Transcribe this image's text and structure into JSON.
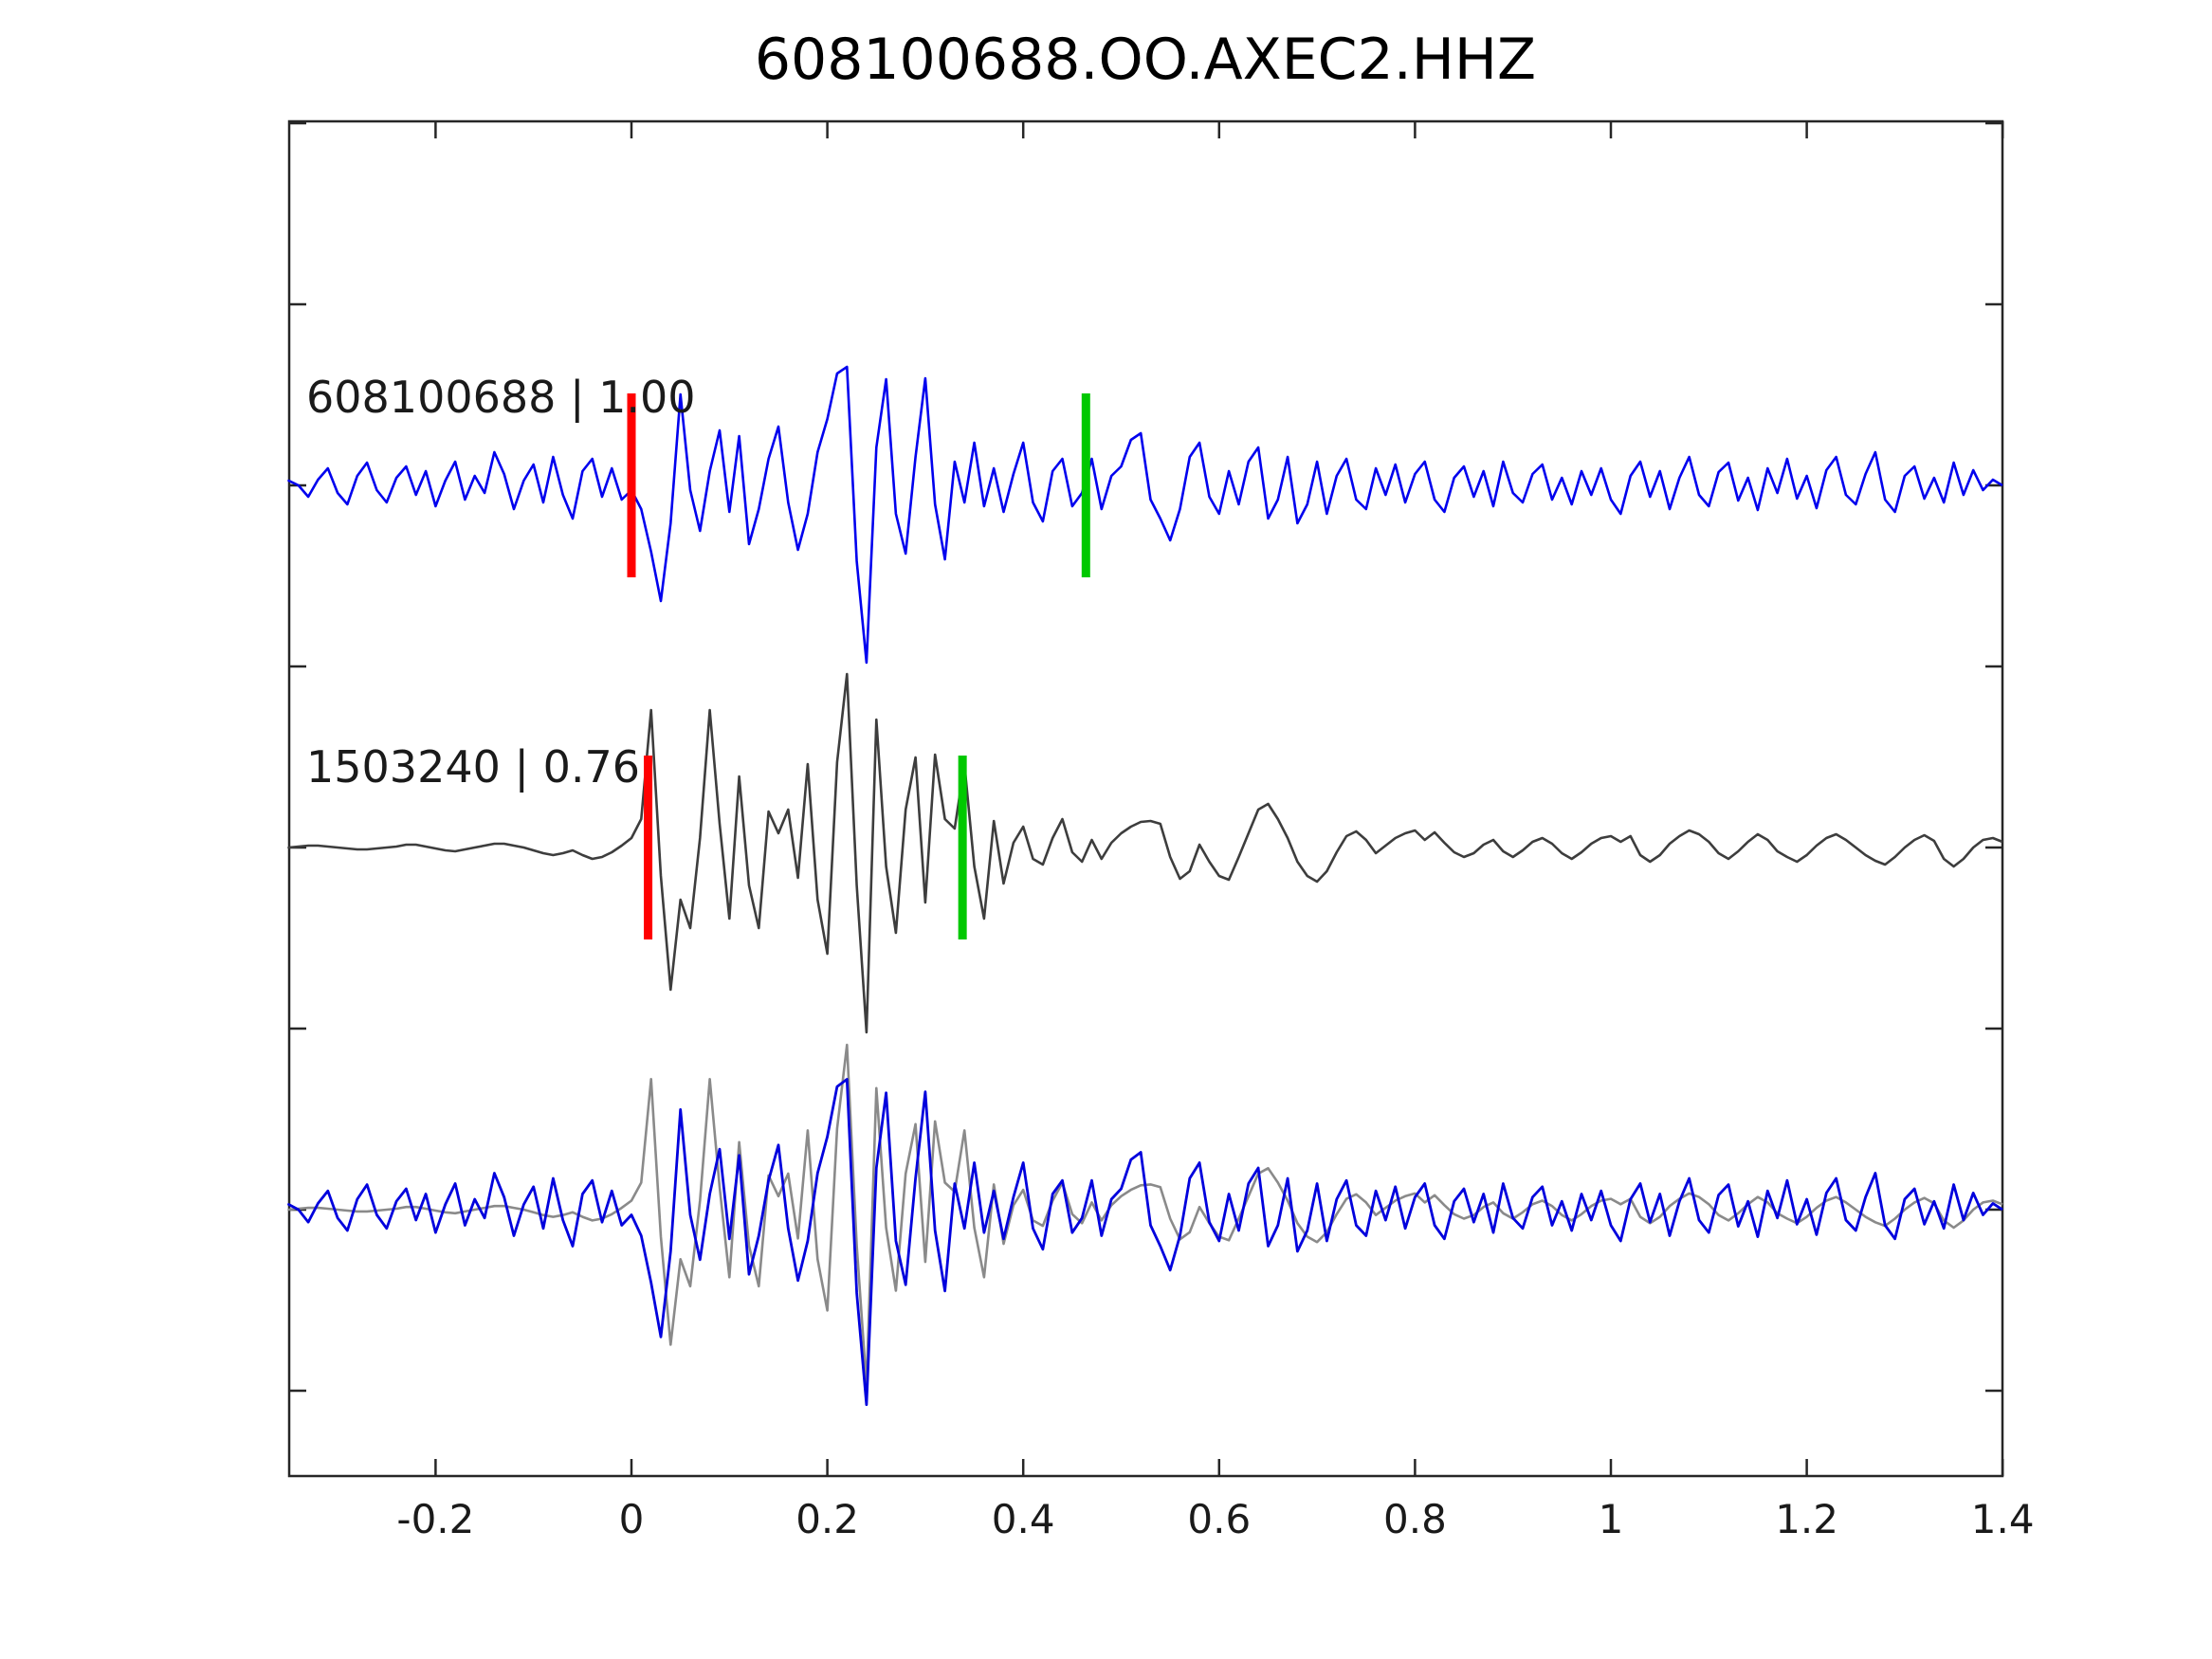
{
  "title": "608100688.OO.AXEC2.HHZ",
  "colors": {
    "background": "#ffffff",
    "axis": "#262626",
    "text": "#1a1a1a",
    "trace_blue": "#0000ee",
    "trace_dark_gray": "#3d3d3d",
    "overlay_gray": "#8a8a8a",
    "overlay_blue": "#0000dd",
    "marker_red": "#ff0000",
    "marker_green": "#00c800"
  },
  "chart_data": {
    "type": "line",
    "title": "608100688.OO.AXEC2.HHZ",
    "xlabel": "",
    "ylabel": "",
    "xlim": [
      -0.35,
      1.4
    ],
    "x_ticks": [
      -0.2,
      0,
      0.2,
      0.4,
      0.6,
      0.8,
      1,
      1.2,
      1.4
    ],
    "x_tick_labels": [
      "-0.2",
      "0",
      "0.2",
      "0.4",
      "0.6",
      "0.8",
      "1",
      "1.2",
      "1.4"
    ],
    "y_tick_labels": [],
    "grid": false,
    "legend_position": "none",
    "t0": -0.35,
    "dt": 0.01,
    "series": [
      {
        "name": "608100688",
        "label": "608100688 | 1.00",
        "event_id": "608100688",
        "correlation": "1.00",
        "row": 0,
        "values": [
          5,
          0,
          -12,
          6,
          18,
          -8,
          -20,
          10,
          24,
          -5,
          -18,
          8,
          20,
          -10,
          15,
          -22,
          5,
          25,
          -15,
          10,
          -8,
          35,
          12,
          -25,
          5,
          22,
          -18,
          30,
          -10,
          -35,
          15,
          28,
          -12,
          18,
          -15,
          -5,
          -25,
          -70,
          -122,
          -40,
          96,
          -5,
          -48,
          15,
          58,
          -28,
          52,
          -62,
          -25,
          28,
          62,
          -18,
          -68,
          -30,
          35,
          70,
          118,
          125,
          -80,
          -187,
          40,
          112,
          -30,
          -72,
          30,
          113,
          -20,
          -78,
          25,
          -18,
          45,
          -22,
          18,
          -28,
          12,
          45,
          -18,
          -38,
          15,
          28,
          -22,
          -8,
          28,
          -25,
          10,
          20,
          48,
          55,
          -15,
          -35,
          -58,
          -25,
          30,
          45,
          -12,
          -30,
          15,
          -20,
          25,
          40,
          -35,
          -15,
          30,
          -40,
          -20,
          25,
          -30,
          10,
          28,
          -15,
          -25,
          18,
          -10,
          22,
          -18,
          12,
          25,
          -15,
          -28,
          8,
          20,
          -12,
          15,
          -22,
          25,
          -8,
          -18,
          12,
          22,
          -15,
          8,
          -20,
          15,
          -10,
          18,
          -15,
          -30,
          10,
          25,
          -12,
          15,
          -25,
          8,
          30,
          -10,
          -22,
          14,
          24,
          -16,
          8,
          -26,
          18,
          -8,
          28,
          -14,
          10,
          -24,
          16,
          30,
          -10,
          -20,
          12,
          35,
          -15,
          -28,
          10,
          20,
          -14,
          8,
          -18,
          24,
          -10,
          16,
          -5,
          6,
          0
        ]
      },
      {
        "name": "1503240",
        "label": "1503240 | 0.76",
        "event_id": "1503240",
        "correlation": "0.76",
        "row": 1,
        "values": [
          0,
          1,
          2,
          2,
          1,
          0,
          -1,
          -2,
          -2,
          -1,
          0,
          1,
          3,
          3,
          1,
          -1,
          -3,
          -4,
          -2,
          0,
          2,
          4,
          4,
          2,
          0,
          -3,
          -6,
          -8,
          -6,
          -3,
          -8,
          -12,
          -10,
          -5,
          2,
          10,
          30,
          145,
          -30,
          -150,
          -55,
          -85,
          10,
          145,
          25,
          -75,
          75,
          -40,
          -85,
          38,
          15,
          40,
          -32,
          88,
          -55,
          -112,
          90,
          183,
          -40,
          -195,
          135,
          -20,
          -90,
          40,
          95,
          -58,
          98,
          30,
          20,
          88,
          -20,
          -75,
          28,
          -38,
          5,
          22,
          -12,
          -18,
          10,
          30,
          -5,
          -15,
          8,
          -12,
          5,
          15,
          22,
          27,
          28,
          25,
          -10,
          -33,
          -25,
          3,
          -15,
          -30,
          -34,
          -10,
          15,
          40,
          46,
          30,
          10,
          -15,
          -30,
          -36,
          -25,
          -5,
          12,
          17,
          8,
          -6,
          2,
          10,
          15,
          18,
          8,
          16,
          5,
          -5,
          -10,
          -6,
          3,
          8,
          -4,
          -10,
          -3,
          6,
          10,
          4,
          -6,
          -12,
          -5,
          4,
          10,
          12,
          6,
          12,
          -8,
          -15,
          -8,
          4,
          12,
          18,
          14,
          6,
          -6,
          -12,
          -4,
          6,
          14,
          8,
          -4,
          -10,
          -15,
          -8,
          2,
          10,
          14,
          8,
          0,
          -8,
          -14,
          -18,
          -10,
          0,
          8,
          13,
          7,
          -12,
          -20,
          -12,
          0,
          8,
          10,
          6
        ]
      }
    ],
    "overlay": {
      "row": 2,
      "gray_source": 1,
      "gray_scale": 0.95,
      "blue_source": 0,
      "blue_scale": 1.1
    },
    "markers": [
      {
        "row": 0,
        "color": "red",
        "t": 0.0
      },
      {
        "row": 0,
        "color": "green",
        "t": 0.464
      },
      {
        "row": 1,
        "color": "red",
        "t": 0.017
      },
      {
        "row": 1,
        "color": "green",
        "t": 0.338
      }
    ]
  }
}
